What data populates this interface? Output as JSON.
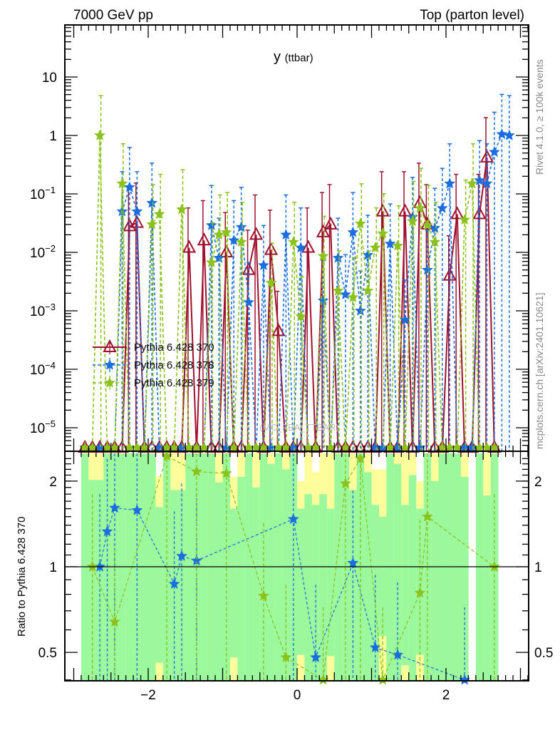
{
  "header": {
    "left": "7000 GeV pp",
    "right": "Top (parton level)"
  },
  "side_labels": {
    "rivet": "Rivet 4.1.0, ≥ 100k events",
    "mcplots": "mcplots.cern.ch [arXiv:2401.10621]"
  },
  "watermark": "(MC_FBA_TTBAR)",
  "colors": {
    "red": "#a0102e",
    "blue": "#1a6fe0",
    "green": "#8cc21c",
    "band_green": "#9cf89c",
    "band_yellow": "#fdfd9c"
  },
  "chart_data": [
    {
      "type": "line",
      "title_main": "y",
      "title_sub": "(ttbar)",
      "yscale": "log",
      "ylim": [
        4e-06,
        78
      ],
      "xlim": [
        -3.12,
        3.11
      ],
      "bin_width": 0.1,
      "y_ticks": [
        {
          "v": 10,
          "base": "10",
          "exp": ""
        },
        {
          "v": 1,
          "base": "1",
          "exp": ""
        },
        {
          "v": 0.1,
          "base": "10",
          "exp": "−1"
        },
        {
          "v": 0.01,
          "base": "10",
          "exp": "−2"
        },
        {
          "v": 0.001,
          "base": "10",
          "exp": "−3"
        },
        {
          "v": 0.0001,
          "base": "10",
          "exp": "−4"
        },
        {
          "v": 1e-05,
          "base": "10",
          "exp": "−5"
        }
      ],
      "legend_position": "middle-left",
      "rel_err_up": 0.6,
      "series": [
        {
          "name": "Pythia 6.428 370",
          "color_key": "red",
          "marker": "triangle",
          "dash": "",
          "range": [
            -2.85,
            2.65
          ],
          "points": [
            [
              -2.25,
              0.028
            ],
            [
              -2.15,
              0.032
            ],
            [
              -1.45,
              0.012
            ],
            [
              -1.25,
              0.016
            ],
            [
              -0.95,
              0.01
            ],
            [
              -0.65,
              0.005
            ],
            [
              -0.55,
              0.02
            ],
            [
              -0.35,
              0.011
            ],
            [
              -0.25,
              0.00045
            ],
            [
              0.15,
              0.012
            ],
            [
              0.35,
              0.022
            ],
            [
              0.45,
              0.03
            ],
            [
              1.15,
              0.05
            ],
            [
              1.45,
              0.05
            ],
            [
              1.65,
              0.07
            ],
            [
              1.75,
              0.03
            ],
            [
              2.05,
              0.004
            ],
            [
              2.15,
              0.045
            ],
            [
              2.45,
              0.045
            ],
            [
              2.55,
              0.42
            ]
          ]
        },
        {
          "name": "Pythia 6.428 378",
          "color_key": "blue",
          "marker": "star",
          "dash": "4,3",
          "range": [
            -2.85,
            2.85
          ],
          "points": [
            [
              -2.35,
              0.05
            ],
            [
              -2.25,
              0.13
            ],
            [
              -2.15,
              0.05
            ],
            [
              -1.95,
              0.07
            ],
            [
              -1.15,
              0.029
            ],
            [
              -1.05,
              0.008
            ],
            [
              -0.85,
              0.016
            ],
            [
              -0.75,
              0.027
            ],
            [
              -0.65,
              0.0014
            ],
            [
              -0.45,
              0.006
            ],
            [
              -0.15,
              0.02
            ],
            [
              0.05,
              0.012
            ],
            [
              0.35,
              0.0015
            ],
            [
              0.55,
              0.008
            ],
            [
              0.65,
              0.0019
            ],
            [
              0.75,
              0.022
            ],
            [
              0.85,
              0.001
            ],
            [
              0.95,
              0.009
            ],
            [
              1.25,
              0.014
            ],
            [
              1.45,
              0.0007
            ],
            [
              1.55,
              0.04
            ],
            [
              1.75,
              0.005
            ],
            [
              1.85,
              0.026
            ],
            [
              1.95,
              0.057
            ],
            [
              2.05,
              0.15
            ],
            [
              2.45,
              0.17
            ],
            [
              2.55,
              0.15
            ],
            [
              2.65,
              0.52
            ],
            [
              2.75,
              1.05
            ],
            [
              2.85,
              1.0
            ]
          ]
        },
        {
          "name": "Pythia 6.428 379",
          "color_key": "green",
          "marker": "star",
          "dash": "5,3",
          "range": [
            -2.85,
            2.65
          ],
          "points": [
            [
              -2.65,
              1.0
            ],
            [
              -2.35,
              0.15
            ],
            [
              -1.95,
              0.03
            ],
            [
              -1.85,
              0.045
            ],
            [
              -1.55,
              0.054
            ],
            [
              -1.15,
              0.0067
            ],
            [
              -1.05,
              0.02
            ],
            [
              -0.95,
              0.022
            ],
            [
              -0.75,
              0.015
            ],
            [
              -0.35,
              0.003
            ],
            [
              -0.05,
              0.015
            ],
            [
              0.05,
              0.0008
            ],
            [
              0.35,
              0.0086
            ],
            [
              0.55,
              0.0022
            ],
            [
              0.75,
              0.0017
            ],
            [
              0.85,
              0.031
            ],
            [
              0.95,
              0.0022
            ],
            [
              1.05,
              0.012
            ],
            [
              1.15,
              0.021
            ],
            [
              1.35,
              0.013
            ],
            [
              1.55,
              0.034
            ],
            [
              1.65,
              0.057
            ],
            [
              1.75,
              0.029
            ],
            [
              1.85,
              0.015
            ],
            [
              2.25,
              0.036
            ],
            [
              2.35,
              0.15
            ]
          ]
        }
      ]
    },
    {
      "type": "line",
      "ylabel": "Ratio to Pythia 6.428 370",
      "yscale": "log",
      "ylim": [
        0.397,
        2.5
      ],
      "xlim": [
        -3.12,
        3.11
      ],
      "y_ticks": [
        {
          "v": 2,
          "label": "2"
        },
        {
          "v": 1,
          "label": "1"
        },
        {
          "v": 0.5,
          "label": "0.5"
        }
      ],
      "x_ticks": [
        {
          "v": -2,
          "label": "−2"
        },
        {
          "v": 0,
          "label": "0"
        },
        {
          "v": 2,
          "label": "2"
        }
      ],
      "band": {
        "x_range": [
          -2.9,
          2.7
        ],
        "empty_bins": [
          2.35
        ],
        "yellow_upper": [
          [
            -2.75,
            2.02
          ],
          [
            -2.65,
            2.02
          ],
          [
            -1.85,
            1.62
          ],
          [
            -1.65,
            1.86
          ],
          [
            -1.55,
            1.86
          ],
          [
            -1.05,
            1.98
          ],
          [
            -0.85,
            1.6
          ],
          [
            -0.75,
            2.07
          ],
          [
            -0.55,
            1.9
          ],
          [
            -0.35,
            2.3
          ],
          [
            -0.15,
            2.2
          ],
          [
            0.05,
            1.6
          ],
          [
            0.15,
            1.8
          ],
          [
            0.25,
            1.65
          ],
          [
            0.35,
            1.8
          ],
          [
            0.45,
            1.6
          ],
          [
            0.75,
            1.86
          ],
          [
            0.95,
            2.15
          ],
          [
            1.05,
            1.65
          ],
          [
            1.15,
            1.5
          ],
          [
            1.35,
            2.3
          ],
          [
            1.45,
            1.65
          ],
          [
            1.55,
            2.1
          ],
          [
            1.65,
            1.6
          ],
          [
            1.85,
            2.0
          ],
          [
            2.25,
            2.07
          ],
          [
            2.55,
            1.78
          ]
        ],
        "white_top": [
          [
            -1.85,
            2.08
          ],
          [
            -0.85,
            2.07
          ],
          [
            0.05,
            2.0
          ],
          [
            0.25,
            2.15
          ],
          [
            1.05,
            2.2
          ],
          [
            1.15,
            2.2
          ],
          [
            1.65,
            2.0
          ]
        ],
        "yellow_lower": [
          [
            -1.85,
            0.46
          ],
          [
            -0.85,
            0.48
          ],
          [
            0.05,
            0.49
          ],
          [
            0.45,
            0.485
          ],
          [
            1.15,
            0.57
          ],
          [
            1.45,
            0.45
          ],
          [
            1.65,
            0.49
          ]
        ]
      },
      "series": [
        {
          "name": "Pythia 6.428 378",
          "color_key": "blue",
          "marker": "star",
          "dash": "4,3",
          "points": [
            [
              -2.65,
              1.0
            ],
            [
              -2.55,
              1.33
            ],
            [
              -2.45,
              1.61
            ],
            [
              -2.15,
              1.58
            ],
            [
              -1.65,
              0.87
            ],
            [
              -1.55,
              1.09
            ],
            [
              -1.35,
              1.05
            ],
            [
              -0.05,
              1.47
            ],
            [
              0.25,
              0.48
            ],
            [
              0.75,
              1.03
            ],
            [
              1.05,
              0.52
            ],
            [
              1.35,
              0.49
            ],
            [
              2.25,
              0.4
            ]
          ]
        },
        {
          "name": "Pythia 6.428 379",
          "color_key": "green",
          "marker": "star",
          "dash": "5,3",
          "points": [
            [
              -2.75,
              1.0
            ],
            [
              -2.45,
              0.64
            ],
            [
              -1.75,
              2.45
            ],
            [
              -1.35,
              2.16
            ],
            [
              -0.95,
              2.13
            ],
            [
              -0.45,
              0.79
            ],
            [
              -0.15,
              0.48
            ],
            [
              0.35,
              0.4
            ],
            [
              0.65,
              1.96
            ],
            [
              0.85,
              2.4
            ],
            [
              1.15,
              0.4
            ],
            [
              1.65,
              0.81
            ],
            [
              1.75,
              1.5
            ],
            [
              2.65,
              1.0
            ]
          ]
        }
      ]
    }
  ]
}
